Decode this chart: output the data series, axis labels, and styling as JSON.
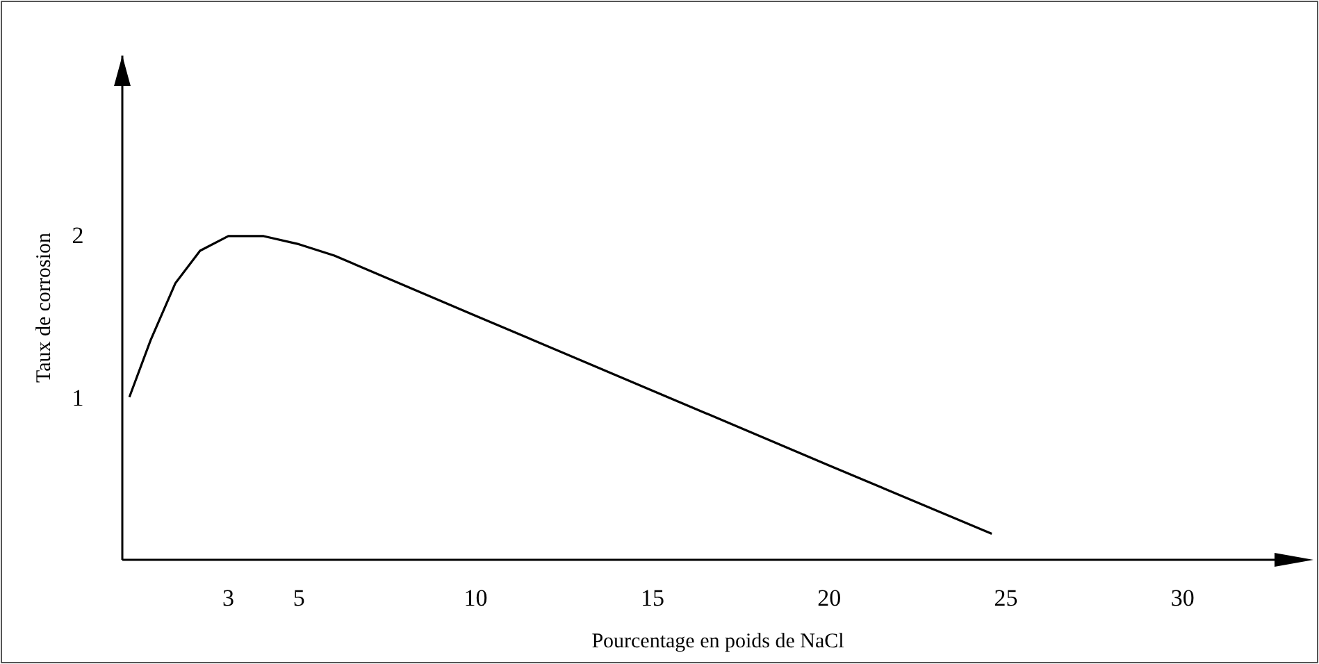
{
  "chart_data": {
    "type": "line",
    "xlabel": "Pourcentage en poids de NaCl",
    "ylabel": "Taux de corrosion",
    "x": [
      0.2,
      0.8,
      1.5,
      2.2,
      3,
      4,
      5,
      6,
      10,
      15,
      20,
      24.6
    ],
    "series": [
      {
        "color": "#000000",
        "values": [
          1.0,
          1.35,
          1.7,
          1.9,
          1.99,
          1.99,
          1.94,
          1.87,
          1.5,
          1.04,
          0.58,
          0.16
        ]
      }
    ],
    "xlim": [
      0,
      33.7
    ],
    "ylim": [
      0,
      3.1
    ],
    "xticks": [
      3,
      5,
      10,
      15,
      20,
      25,
      30
    ],
    "yticks": [
      1,
      2
    ],
    "grid": false,
    "marker": "none",
    "line_style": "solid"
  }
}
